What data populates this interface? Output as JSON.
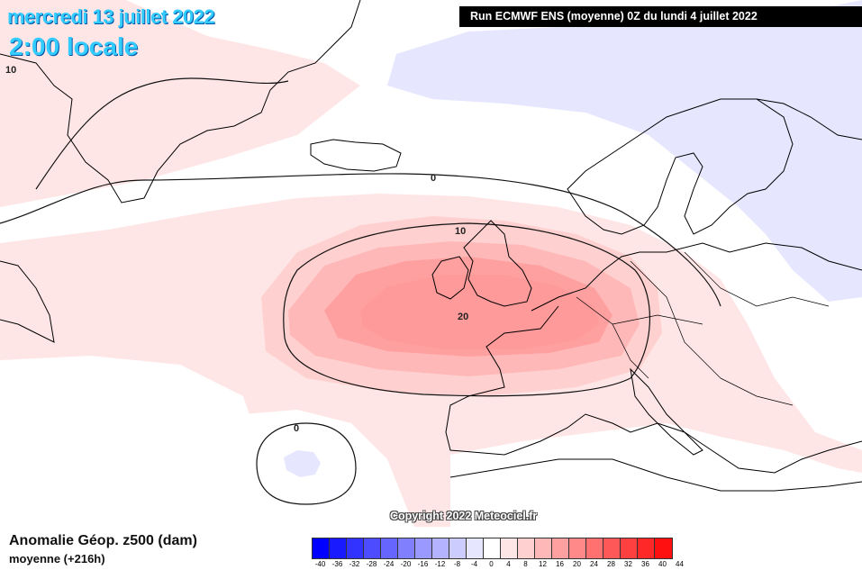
{
  "header": {
    "date": "mercredi 13 juillet 2022",
    "time": "2:00 locale"
  },
  "run_info": "Run ECMWF ENS (moyenne) 0Z du lundi 4 juillet 2022",
  "copyright": "Copyright 2022 Meteociel.fr",
  "legend": {
    "title": "Anomalie Géop. z500 (dam)",
    "subtitle": "moyenne    (+216h)",
    "scale_values": [
      "-40",
      "-36",
      "-32",
      "-28",
      "-24",
      "-20",
      "-16",
      "-12",
      "-8",
      "-4",
      "0",
      "4",
      "8",
      "12",
      "16",
      "20",
      "24",
      "28",
      "32",
      "36",
      "40",
      "44"
    ],
    "scale_colors": [
      "#0000ff",
      "#1a1aff",
      "#3333ff",
      "#4d4dff",
      "#6666ff",
      "#8080ff",
      "#9999ff",
      "#b3b3ff",
      "#ccccff",
      "#e6e6ff",
      "#ffffff",
      "#ffe6e6",
      "#ffd0d0",
      "#ffb8b8",
      "#ffa0a0",
      "#ff8888",
      "#ff7070",
      "#ff5858",
      "#ff4040",
      "#ff2828",
      "#ff1010"
    ]
  },
  "contour_labels": {
    "zero_north": "0",
    "ten_top_left": "10",
    "ten_center": "10",
    "twenty_center": "20",
    "zero_south": "0"
  },
  "colors": {
    "light_red": "#ffe6e6",
    "mid_red": "#ffd0d0",
    "red2": "#ffb8b8",
    "red3": "#ffa0a0",
    "red4": "#ff9090",
    "light_blue": "#e6e6ff",
    "date_text": "#33ccff"
  }
}
